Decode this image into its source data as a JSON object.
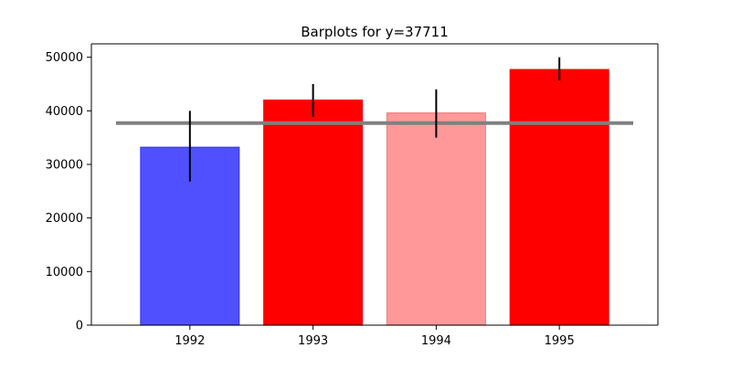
{
  "chart_data": {
    "type": "bar",
    "title": "Barplots for y=37711",
    "xlabel": "",
    "ylabel": "",
    "categories": [
      "1992",
      "1993",
      "1994",
      "1995"
    ],
    "values": [
      33200,
      42000,
      39600,
      47700
    ],
    "error_low": [
      26800,
      38900,
      35000,
      45600
    ],
    "error_high": [
      40000,
      45000,
      44000,
      50000
    ],
    "bar_colors": [
      "#5050ff",
      "#ff0000",
      "#ff9999",
      "#ff0000"
    ],
    "bar_edge_colors": [
      "#3a3aee",
      "#ff0000",
      "#f08080",
      "#ff0000"
    ],
    "reference_line": {
      "value": 37711,
      "color": "#808080"
    },
    "ylim": [
      0,
      52500
    ],
    "y_ticks": [
      0,
      10000,
      20000,
      30000,
      40000,
      50000
    ],
    "grid": false,
    "legend": "none"
  }
}
